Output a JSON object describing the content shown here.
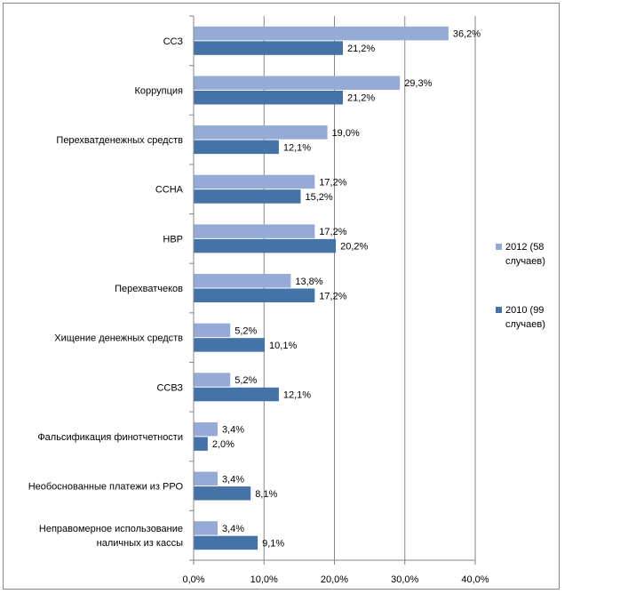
{
  "chart_data": {
    "type": "bar",
    "orientation": "horizontal",
    "title": "",
    "xlabel": "",
    "ylabel": "",
    "xlim": [
      0,
      40
    ],
    "ticks": [
      "0,0%",
      "10,0%",
      "20,0%",
      "30,0%",
      "40,0%"
    ],
    "tick_values": [
      0,
      10,
      20,
      30,
      40
    ],
    "grid": true,
    "legend_position": "right",
    "categories": [
      [
        "ССЗ"
      ],
      [
        "Коррупция"
      ],
      [
        "Перехватденежных средств"
      ],
      [
        "ССНА"
      ],
      [
        "НВР"
      ],
      [
        "Перехватчеков"
      ],
      [
        "Хищение денежных средств"
      ],
      [
        "ССВЗ"
      ],
      [
        "Фальсификация финотчетности"
      ],
      [
        "Необоснованные платежи из РРО"
      ],
      [
        "Неправомерное использование",
        "наличных из кассы"
      ]
    ],
    "series": [
      {
        "name": [
          "2012 (58",
          "случаев)"
        ],
        "color": "#95aad4",
        "values": [
          36.2,
          29.3,
          19.0,
          17.2,
          17.2,
          13.8,
          5.2,
          5.2,
          3.4,
          3.4,
          3.4
        ],
        "labels": [
          "36,2%",
          "29,3%",
          "19,0%",
          "17,2%",
          "17,2%",
          "13,8%",
          "5,2%",
          "5,2%",
          "3,4%",
          "3,4%",
          "3,4%"
        ]
      },
      {
        "name": [
          "2010 (99",
          "случаев)"
        ],
        "color": "#4572a7",
        "values": [
          21.2,
          21.2,
          12.1,
          15.2,
          20.2,
          17.2,
          10.1,
          12.1,
          2.0,
          8.1,
          9.1
        ],
        "labels": [
          "21,2%",
          "21,2%",
          "12,1%",
          "15,2%",
          "20,2%",
          "17,2%",
          "10,1%",
          "12,1%",
          "2,0%",
          "8,1%",
          "9,1%"
        ]
      }
    ]
  }
}
